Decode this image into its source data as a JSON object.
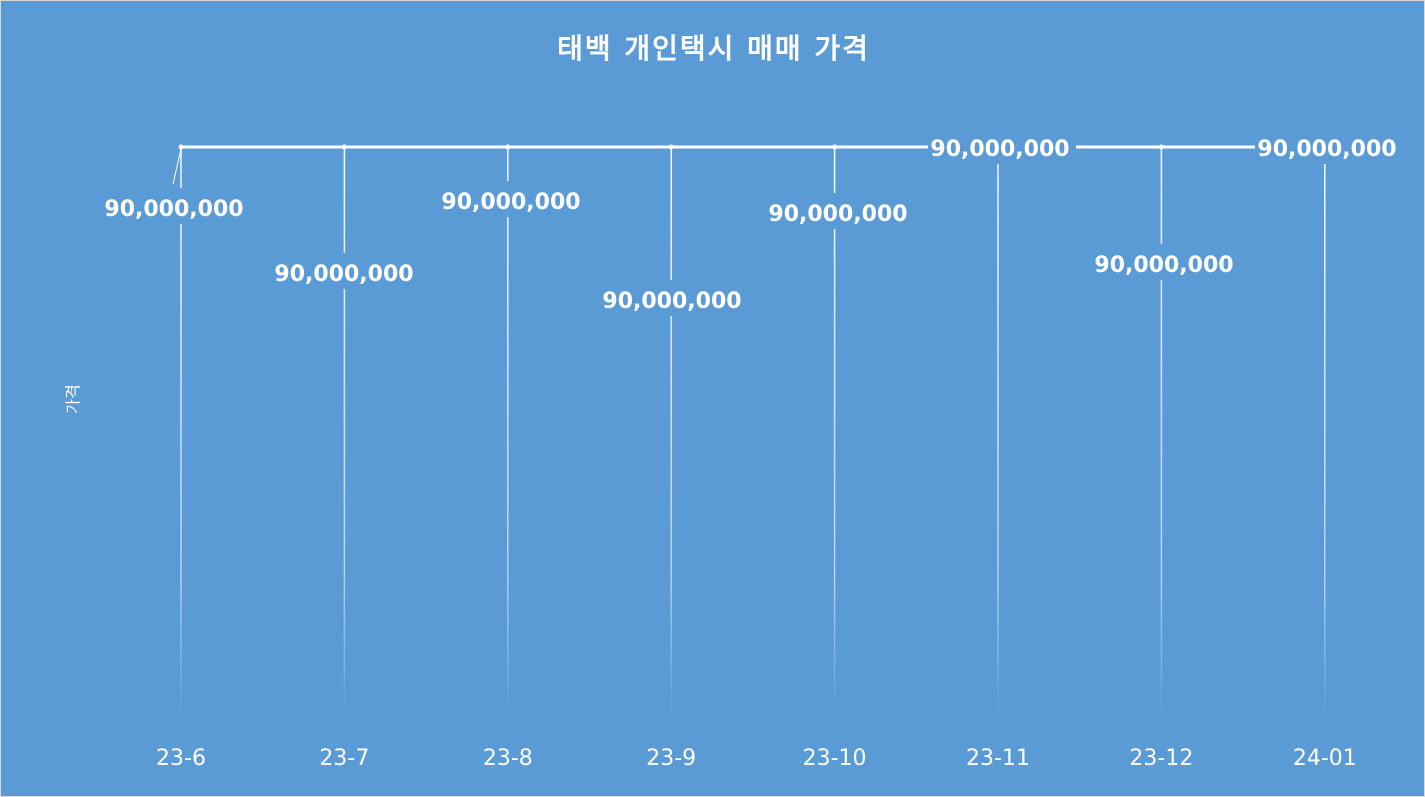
{
  "chart_data": {
    "type": "line",
    "title": "태백 개인택시 매매 가격",
    "xlabel": "",
    "ylabel": "가격",
    "categories": [
      "23-6",
      "23-7",
      "23-8",
      "23-9",
      "23-10",
      "23-11",
      "23-12",
      "24-01"
    ],
    "series": [
      {
        "values": [
          90000000,
          90000000,
          90000000,
          90000000,
          90000000,
          90000000,
          90000000,
          90000000
        ],
        "labels": [
          "90,000,000",
          "90,000,000",
          "90,000,000",
          "90,000,000",
          "90,000,000",
          "90,000,000",
          "90,000,000",
          "90,000,000"
        ]
      }
    ],
    "grid": false,
    "legend": "none",
    "colors": {
      "background": "#5b9bd5",
      "line": "#ffffff",
      "text": "#ffffff"
    }
  }
}
